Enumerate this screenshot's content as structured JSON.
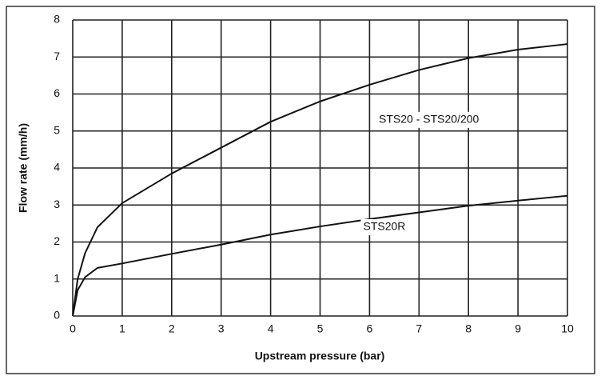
{
  "chart_data": {
    "type": "line",
    "xlabel": "Upstream pressure (bar)",
    "ylabel": "Flow rate (mm/h)",
    "x": [
      0,
      0.1,
      0.25,
      0.5,
      1,
      2,
      3,
      4,
      5,
      6,
      7,
      8,
      9,
      10
    ],
    "series": [
      {
        "name": "STS20 - STS20/200",
        "color": "#111111",
        "values": [
          0,
          1.0,
          1.7,
          2.4,
          3.05,
          3.85,
          4.55,
          5.25,
          5.8,
          6.25,
          6.65,
          6.97,
          7.2,
          7.35
        ]
      },
      {
        "name": "STS20R",
        "color": "#111111",
        "values": [
          0,
          0.7,
          1.05,
          1.3,
          1.42,
          1.68,
          1.93,
          2.2,
          2.42,
          2.62,
          2.8,
          2.98,
          3.12,
          3.25
        ]
      }
    ],
    "xlim": [
      0,
      10
    ],
    "xticks": [
      0,
      1,
      2,
      3,
      4,
      5,
      6,
      7,
      8,
      9,
      10
    ],
    "ylim": [
      0,
      8
    ],
    "yticks": [
      0,
      1,
      2,
      3,
      4,
      5,
      6,
      7,
      8
    ],
    "grid": true
  }
}
